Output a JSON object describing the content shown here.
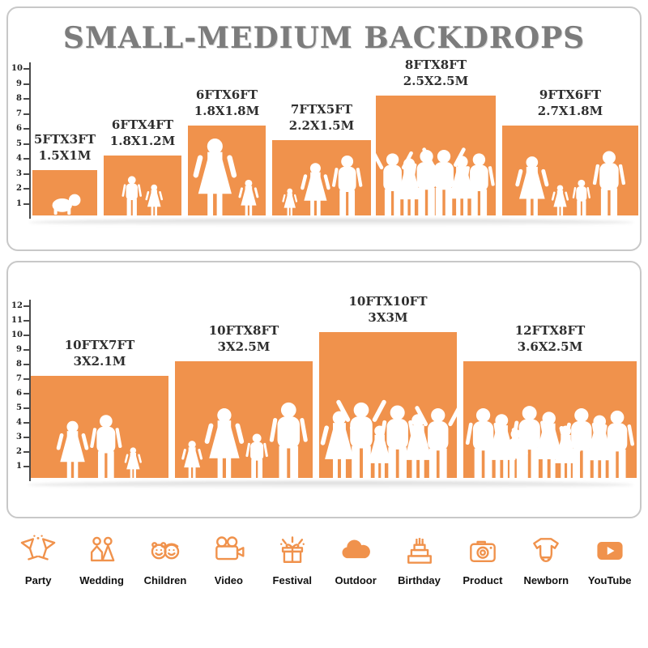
{
  "title": "SMALL-MEDIUM BACKDROPS",
  "accent": "#F0924C",
  "panel1": {
    "ruler": [
      1,
      2,
      3,
      4,
      5,
      6,
      7,
      8,
      9,
      10
    ],
    "boxes": [
      {
        "ft": "5FTX3FT",
        "m": "1.5X1M",
        "people": "b:0.50"
      },
      {
        "ft": "6FTX4FT",
        "m": "1.8X1.2M",
        "people": "c:0.66,g:0.52"
      },
      {
        "ft": "6FTX6FT",
        "m": "1.8X1.8M",
        "people": "w:0.86,g:0.40"
      },
      {
        "ft": "7FTX5FT",
        "m": "2.2X1.5M",
        "people": "g:0.36,w:0.70,m:0.80"
      },
      {
        "ft": "8FTX8FT",
        "m": "2.5X2.5M",
        "people": "u:0.52,w:0.48,m:0.55,u:0.55,w:0.50,m:0.52"
      },
      {
        "ft": "9FTX6FT",
        "m": "2.7X1.8M",
        "people": "w:0.66,g:0.34,c:0.40,m:0.72"
      }
    ]
  },
  "panel2": {
    "ruler": [
      1,
      2,
      3,
      4,
      5,
      6,
      7,
      8,
      9,
      10,
      11,
      12
    ],
    "boxes": [
      {
        "ft": "10FTX7FT",
        "m": "3X2.1M",
        "people": "w:0.56,m:0.62,g:0.30"
      },
      {
        "ft": "10FTX8FT",
        "m": "3X2.5M",
        "people": "g:0.32,w:0.60,c:0.38,m:0.65"
      },
      {
        "ft": "10FTX10FT",
        "m": "3X3M",
        "people": "w:0.46,u:0.52,g:0.36,m:0.50,w:0.44,u:0.48"
      },
      {
        "ft": "12FTX8FT",
        "m": "3.6X2.5M",
        "people": "m:0.60,w:0.55,c:0.42,m:0.62,w:0.57,g:0.45,m:0.60,w:0.54,m:0.58"
      }
    ]
  },
  "icons": [
    {
      "icon": "party-icon",
      "label": "Party"
    },
    {
      "icon": "wedding-icon",
      "label": "Wedding"
    },
    {
      "icon": "children-icon",
      "label": "Children"
    },
    {
      "icon": "video-icon",
      "label": "Video"
    },
    {
      "icon": "festival-icon",
      "label": "Festival"
    },
    {
      "icon": "outdoor-icon",
      "label": "Outdoor"
    },
    {
      "icon": "birthday-icon",
      "label": "Birthday"
    },
    {
      "icon": "product-icon",
      "label": "Product"
    },
    {
      "icon": "newborn-icon",
      "label": "Newborn"
    },
    {
      "icon": "youtube-icon",
      "label": "YouTube"
    }
  ]
}
